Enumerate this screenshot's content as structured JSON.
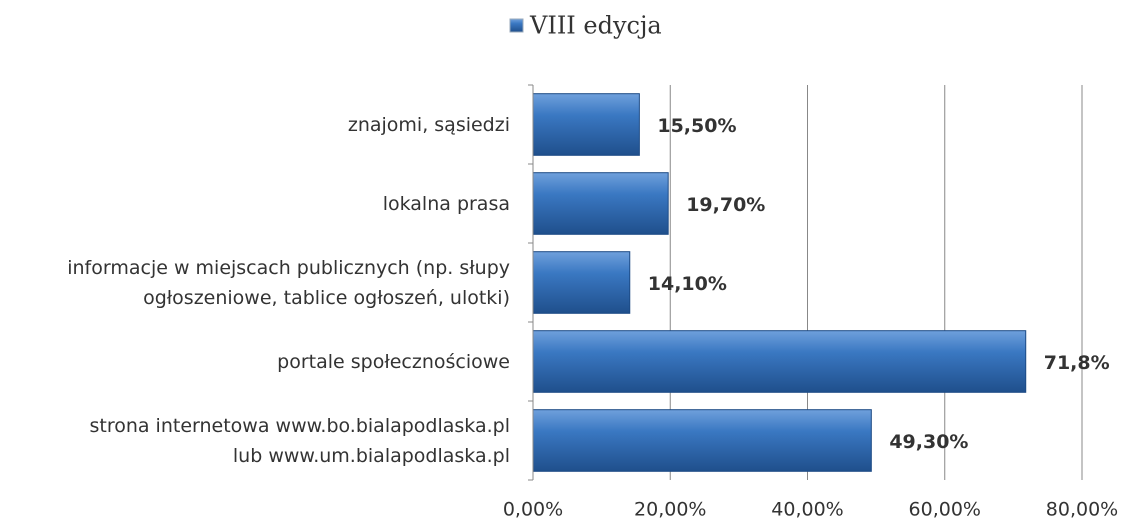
{
  "chart_data": {
    "type": "hbar",
    "categories": [
      "znajomi, sąsiedzi",
      "lokalna prasa",
      "informacje w miejscach publicznych (np. słupy\nogłoszeniowe, tablice ogłoszeń, ulotki)",
      "portale społecznościowe",
      "strona internetowa www.bo.bialapodlaska.pl\nlub www.um.bialapodlaska.pl"
    ],
    "series": [
      {
        "name": "VIII edycja",
        "color": "#2f6db5",
        "values": [
          15.5,
          19.7,
          14.1,
          71.8,
          49.3
        ],
        "value_labels": [
          "15,50%",
          "19,70%",
          "14,10%",
          "71,8%",
          "49,30%"
        ]
      }
    ],
    "xlim": [
      0,
      80
    ],
    "xticks": [
      {
        "value": 0,
        "label": "0,00%"
      },
      {
        "value": 20,
        "label": "20,00%"
      },
      {
        "value": 40,
        "label": "40,00%"
      },
      {
        "value": 60,
        "label": "60,00%"
      },
      {
        "value": 80,
        "label": "80,00%"
      }
    ],
    "grid": true,
    "legend": "top"
  }
}
